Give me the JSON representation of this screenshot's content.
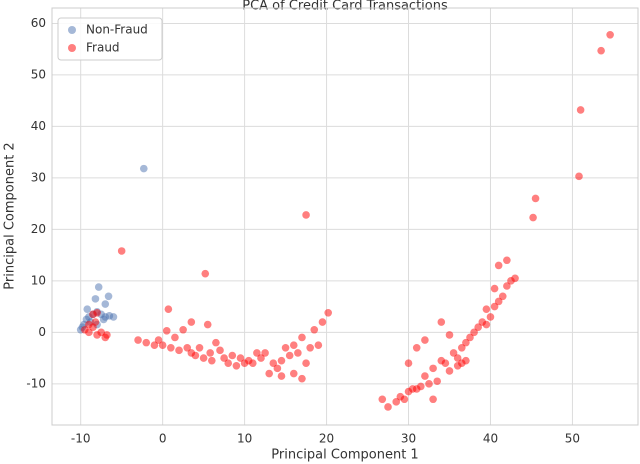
{
  "chart_data": {
    "type": "scatter",
    "title": "PCA of Credit Card Transactions",
    "x_label": "Principal Component 1",
    "y_label": "Principal Component 2",
    "xlim": [
      -13.5,
      58
    ],
    "ylim": [
      -18,
      63
    ],
    "xticks": [
      -10,
      0,
      10,
      20,
      30,
      40,
      50
    ],
    "yticks": [
      -10,
      0,
      10,
      20,
      30,
      40,
      50,
      60
    ],
    "grid": true,
    "legend": "upper-left",
    "series": [
      {
        "name": "Non-Fraud",
        "color": "#4c72b0",
        "x": [
          -10,
          -9.6,
          -9.3,
          -9,
          -8.5,
          -8,
          -7.5,
          -7,
          -6.5,
          -6,
          -8.2,
          -7.8,
          -7,
          -6.6,
          -9.8,
          -8.8,
          -7.2,
          -8,
          -9.2,
          -2.3
        ],
        "values": [
          0.5,
          1.5,
          2.5,
          3,
          3.5,
          4,
          3.5,
          3,
          3.2,
          3,
          6.5,
          8.8,
          5.5,
          7,
          1,
          2,
          2.5,
          1.5,
          4.5,
          31.8
        ]
      },
      {
        "name": "Fraud",
        "color": "#ff0000",
        "x": [
          -9.5,
          -9,
          -8.5,
          -8,
          -7.5,
          -7,
          -8.5,
          -8.2,
          -9,
          -6.8,
          -8,
          -5,
          5.2,
          17.5,
          50.8,
          51,
          53.5,
          54.6,
          45.5,
          45.2,
          -3,
          -2,
          -1,
          0,
          0.5,
          0.7,
          1,
          2,
          2.5,
          3,
          3.5,
          4,
          4.5,
          5,
          5.5,
          5.8,
          6,
          6.5,
          7,
          7.5,
          8,
          8.5,
          9,
          9.5,
          10,
          10.5,
          11,
          11.5,
          12,
          12.5,
          13,
          13.5,
          14,
          14.5,
          15,
          15.5,
          16,
          16.5,
          17,
          17.5,
          17,
          18,
          18.5,
          19,
          19.5,
          20.2,
          16,
          14.5,
          3.5,
          1.5,
          -0.5,
          26.8,
          27.5,
          28.5,
          29,
          29.5,
          30,
          30.5,
          31,
          31.5,
          32,
          32.5,
          33,
          33.5,
          34,
          34.5,
          35,
          35.5,
          36,
          36.5,
          37,
          37,
          37.5,
          38,
          38.5,
          39,
          39.5,
          40,
          40.5,
          41,
          41.5,
          42,
          42.5,
          43,
          40.5,
          39.5,
          31,
          30,
          32,
          35,
          36,
          41,
          42,
          33,
          34,
          36.5
        ],
        "values": [
          0.5,
          0,
          1,
          -0.5,
          0,
          -1,
          3.5,
          2,
          1.5,
          -0.5,
          3.8,
          15.8,
          11.4,
          22.8,
          30.3,
          43.2,
          54.7,
          57.8,
          26,
          22.3,
          -1.5,
          -2,
          -2.5,
          -2.5,
          0.3,
          4.5,
          -3,
          -3.5,
          0.5,
          -3,
          -4,
          -4.5,
          -3,
          -5,
          1.5,
          -4,
          -5.5,
          -2,
          -3.5,
          -5,
          -6,
          -4.5,
          -6.5,
          -5,
          -6,
          -5.5,
          -6,
          -4,
          -5,
          -4,
          -8,
          -6,
          -7,
          -5.5,
          -3,
          -4.5,
          -2.5,
          -4,
          -1,
          -6,
          -9,
          -3,
          0.5,
          -2.5,
          2,
          3.8,
          -8,
          -8.5,
          2,
          -1,
          -1.5,
          -13,
          -14.5,
          -13.5,
          -12.5,
          -13,
          -11.5,
          -11,
          -11,
          -10.5,
          -8.5,
          -10,
          -7,
          -9.5,
          -5.5,
          -6,
          -7.5,
          -4,
          -5,
          -3,
          -2,
          -5.5,
          -1,
          0,
          1,
          2,
          1.5,
          3,
          5,
          6,
          7,
          9,
          10,
          10.5,
          8.5,
          4.5,
          -3,
          -6,
          -1.5,
          -0.5,
          -6.5,
          13,
          14,
          -13,
          2,
          -6
        ]
      }
    ]
  }
}
